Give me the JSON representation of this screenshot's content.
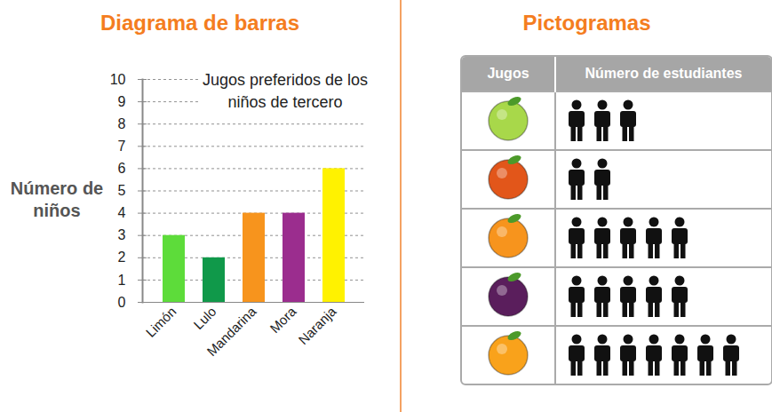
{
  "chart_data": [
    {
      "type": "bar",
      "heading": "Diagrama de barras",
      "title": "Jugos preferidos de los niños de tercero",
      "ylabel": "Número de niños",
      "categories": [
        "Limón",
        "Lulo",
        "Mandarina",
        "Mora",
        "Naranja"
      ],
      "values": [
        3,
        2,
        4,
        4,
        6
      ],
      "colors": [
        "#5ddc3a",
        "#10994a",
        "#f7941d",
        "#9b2d8e",
        "#fff200"
      ],
      "ylim": [
        0,
        10
      ],
      "yticks": [
        0,
        1,
        2,
        3,
        4,
        5,
        6,
        7,
        8,
        9,
        10
      ],
      "grid": true
    },
    {
      "type": "pictogram",
      "heading": "Pictogramas",
      "columns": [
        "Jugos",
        "Número de estudiantes"
      ],
      "categories": [
        null,
        null,
        null,
        null,
        null
      ],
      "values": [
        3,
        2,
        5,
        5,
        7
      ],
      "colors": [
        "#a8d84a",
        "#e2561a",
        "#f7941d",
        "#5a1e5c",
        "#f9a21b"
      ]
    }
  ]
}
